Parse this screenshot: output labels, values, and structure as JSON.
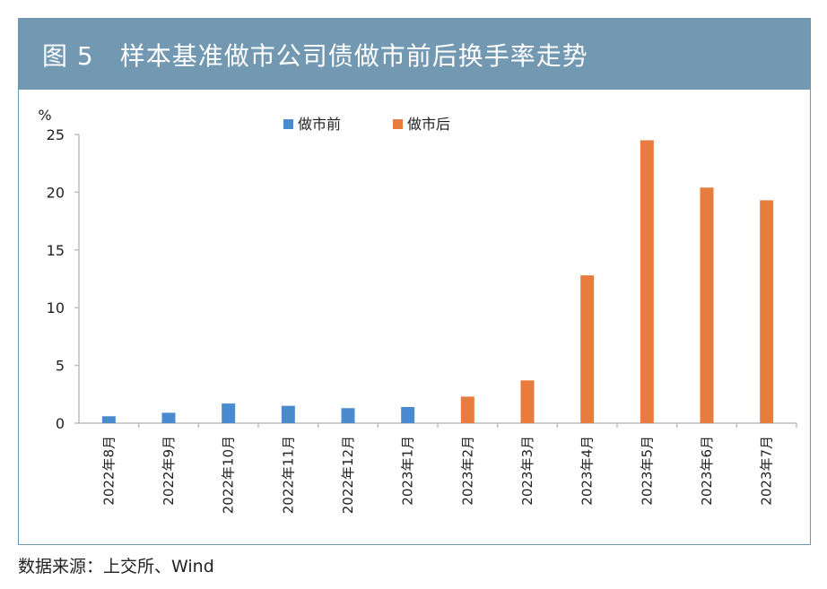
{
  "title": "图 5　样本基准做市公司债做市前后换手率走势",
  "source": "数据来源：上交所、Wind",
  "colors": {
    "title_bg": "#7398b1",
    "before": "#4a8bcf",
    "after": "#e87c3e",
    "frame": "#6f96ad"
  },
  "chart_data": {
    "type": "bar",
    "ylabel": "%",
    "ylim": [
      0,
      25
    ],
    "yticks": [
      0,
      5,
      10,
      15,
      20,
      25
    ],
    "grid": false,
    "legend_position": "top",
    "categories": [
      "2022年8月",
      "2022年9月",
      "2022年10月",
      "2022年11月",
      "2022年12月",
      "2023年1月",
      "2023年2月",
      "2023年3月",
      "2023年4月",
      "2023年5月",
      "2023年6月",
      "2023年7月"
    ],
    "series": [
      {
        "name": "做市前",
        "color": "#4a8bcf",
        "values": [
          0.6,
          0.9,
          1.7,
          1.5,
          1.3,
          1.4,
          null,
          null,
          null,
          null,
          null,
          null
        ]
      },
      {
        "name": "做市后",
        "color": "#e87c3e",
        "values": [
          null,
          null,
          null,
          null,
          null,
          null,
          2.3,
          3.7,
          12.8,
          24.5,
          20.4,
          19.3
        ]
      }
    ]
  }
}
